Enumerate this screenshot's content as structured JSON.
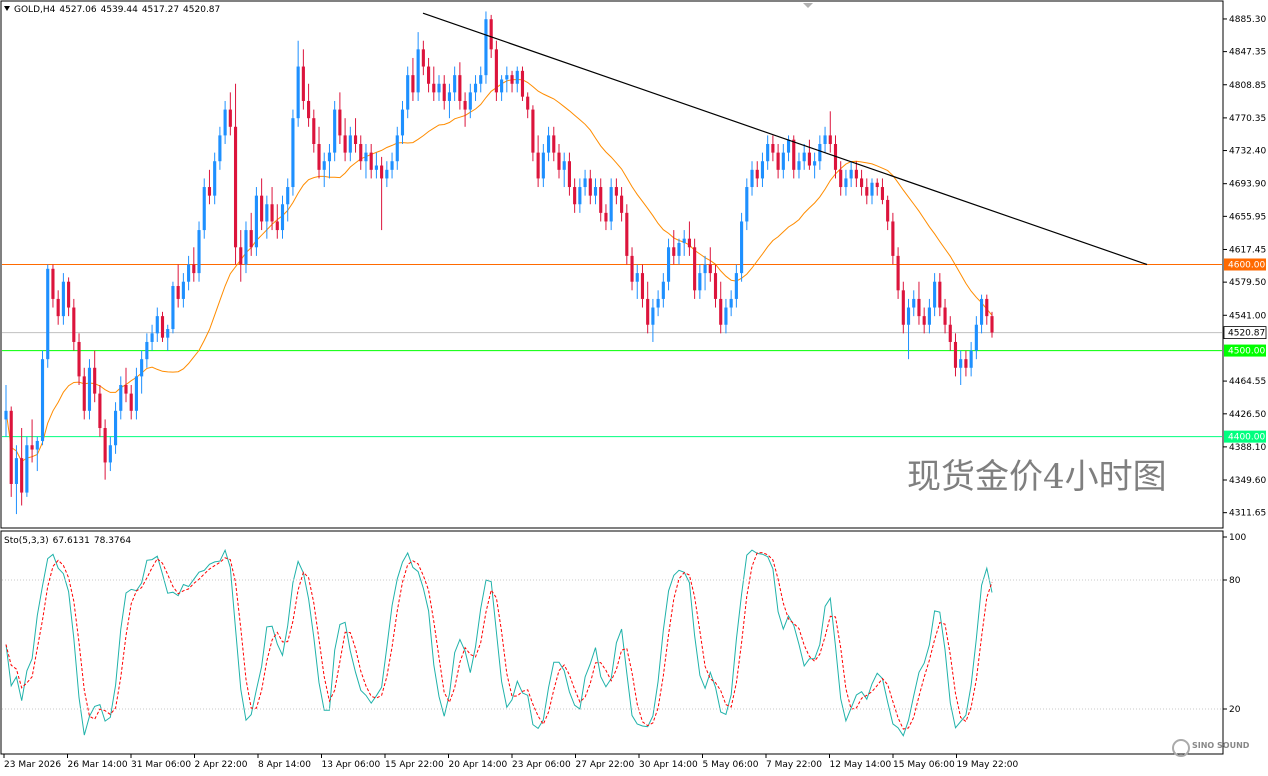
{
  "chart_data": [
    {
      "type": "candlestick",
      "symbol": "GOLD",
      "timeframe": "H4",
      "ohlc_header": {
        "open": "4527.06",
        "high": "4539.44",
        "low": "4517.27",
        "close": "4520.87"
      },
      "price_axis_ticks": [
        "4885.30",
        "4847.35",
        "4808.85",
        "4770.35",
        "4732.40",
        "4693.90",
        "4655.95",
        "4617.45",
        "4579.50",
        "4541.00",
        "4464.55",
        "4426.50",
        "4388.10",
        "4349.60",
        "4311.65"
      ],
      "ylim": [
        4295,
        4905
      ],
      "time_axis_labels": [
        "23 Mar 2026",
        "26 Mar 14:00",
        "31 Mar 06:00",
        "2 Apr 22:00",
        "8 Apr 14:00",
        "13 Apr 06:00",
        "15 Apr 22:00",
        "20 Apr 14:00",
        "23 Apr 06:00",
        "27 Apr 22:00",
        "30 Apr 14:00",
        "5 May 06:00",
        "7 May 22:00",
        "12 May 14:00",
        "15 May 06:00",
        "19 May 22:00"
      ],
      "horizontal_lines": [
        {
          "price": 4600.0,
          "label": "4600.00",
          "color": "#ff6a00"
        },
        {
          "price": 4500.0,
          "label": "4500.00",
          "color": "#00ff00"
        },
        {
          "price": 4400.0,
          "label": "4400.00",
          "color": "#00ff7f"
        }
      ],
      "current_price": {
        "price": 4520.87,
        "label": "4520.87"
      },
      "trendline": {
        "from": {
          "bar": 143,
          "price": 4892
        },
        "to": {
          "bar": 387,
          "price": 4600
        },
        "color": "#000000"
      },
      "moving_average": {
        "color": "#ff8c00"
      },
      "up_color": "#1e90ff",
      "down_color": "#dc143c",
      "candles_ohlc": [
        [
          4420,
          4460,
          4400,
          4430
        ],
        [
          4430,
          4435,
          4330,
          4345
        ],
        [
          4345,
          4390,
          4310,
          4375
        ],
        [
          4375,
          4410,
          4320,
          4335
        ],
        [
          4335,
          4400,
          4330,
          4390
        ],
        [
          4390,
          4420,
          4370,
          4385
        ],
        [
          4385,
          4400,
          4360,
          4395
        ],
        [
          4395,
          4500,
          4390,
          4490
        ],
        [
          4490,
          4600,
          4480,
          4595
        ],
        [
          4595,
          4600,
          4550,
          4560
        ],
        [
          4560,
          4570,
          4530,
          4540
        ],
        [
          4540,
          4590,
          4530,
          4580
        ],
        [
          4580,
          4585,
          4540,
          4550
        ],
        [
          4550,
          4560,
          4500,
          4510
        ],
        [
          4510,
          4520,
          4460,
          4470
        ],
        [
          4470,
          4480,
          4420,
          4430
        ],
        [
          4430,
          4490,
          4420,
          4480
        ],
        [
          4480,
          4500,
          4440,
          4450
        ],
        [
          4450,
          4460,
          4400,
          4410
        ],
        [
          4410,
          4420,
          4350,
          4370
        ],
        [
          4370,
          4400,
          4360,
          4390
        ],
        [
          4390,
          4440,
          4380,
          4430
        ],
        [
          4430,
          4470,
          4420,
          4460
        ],
        [
          4460,
          4480,
          4440,
          4450
        ],
        [
          4450,
          4460,
          4420,
          4430
        ],
        [
          4430,
          4480,
          4420,
          4470
        ],
        [
          4470,
          4500,
          4450,
          4490
        ],
        [
          4490,
          4520,
          4480,
          4510
        ],
        [
          4510,
          4530,
          4500,
          4520
        ],
        [
          4520,
          4550,
          4510,
          4540
        ],
        [
          4540,
          4545,
          4510,
          4515
        ],
        [
          4515,
          4530,
          4500,
          4525
        ],
        [
          4525,
          4580,
          4520,
          4575
        ],
        [
          4575,
          4600,
          4550,
          4560
        ],
        [
          4560,
          4590,
          4550,
          4580
        ],
        [
          4580,
          4610,
          4570,
          4600
        ],
        [
          4600,
          4620,
          4580,
          4590
        ],
        [
          4590,
          4650,
          4580,
          4640
        ],
        [
          4640,
          4700,
          4630,
          4690
        ],
        [
          4690,
          4710,
          4670,
          4680
        ],
        [
          4680,
          4730,
          4670,
          4720
        ],
        [
          4720,
          4760,
          4710,
          4750
        ],
        [
          4750,
          4790,
          4740,
          4780
        ],
        [
          4780,
          4800,
          4750,
          4760
        ],
        [
          4760,
          4810,
          4600,
          4620
        ],
        [
          4620,
          4640,
          4580,
          4600
        ],
        [
          4600,
          4650,
          4590,
          4640
        ],
        [
          4640,
          4660,
          4610,
          4620
        ],
        [
          4620,
          4690,
          4610,
          4680
        ],
        [
          4680,
          4700,
          4640,
          4650
        ],
        [
          4650,
          4680,
          4630,
          4670
        ],
        [
          4670,
          4690,
          4640,
          4650
        ],
        [
          4650,
          4670,
          4630,
          4640
        ],
        [
          4640,
          4680,
          4630,
          4670
        ],
        [
          4670,
          4700,
          4650,
          4690
        ],
        [
          4690,
          4780,
          4680,
          4770
        ],
        [
          4770,
          4860,
          4760,
          4830
        ],
        [
          4830,
          4850,
          4780,
          4790
        ],
        [
          4790,
          4810,
          4760,
          4770
        ],
        [
          4770,
          4780,
          4730,
          4740
        ],
        [
          4740,
          4760,
          4700,
          4710
        ],
        [
          4710,
          4730,
          4690,
          4720
        ],
        [
          4720,
          4740,
          4700,
          4730
        ],
        [
          4730,
          4790,
          4720,
          4780
        ],
        [
          4780,
          4800,
          4740,
          4750
        ],
        [
          4750,
          4770,
          4720,
          4730
        ],
        [
          4730,
          4760,
          4720,
          4750
        ],
        [
          4750,
          4770,
          4730,
          4740
        ],
        [
          4740,
          4750,
          4710,
          4720
        ],
        [
          4720,
          4740,
          4700,
          4730
        ],
        [
          4730,
          4740,
          4700,
          4710
        ],
        [
          4710,
          4730,
          4700,
          4715
        ],
        [
          4715,
          4725,
          4640,
          4700
        ],
        [
          4700,
          4720,
          4690,
          4710
        ],
        [
          4710,
          4730,
          4700,
          4720
        ],
        [
          4720,
          4760,
          4710,
          4750
        ],
        [
          4750,
          4790,
          4740,
          4780
        ],
        [
          4780,
          4830,
          4770,
          4820
        ],
        [
          4820,
          4840,
          4790,
          4800
        ],
        [
          4800,
          4870,
          4790,
          4850
        ],
        [
          4850,
          4860,
          4820,
          4830
        ],
        [
          4830,
          4840,
          4800,
          4810
        ],
        [
          4810,
          4830,
          4790,
          4800
        ],
        [
          4800,
          4820,
          4790,
          4810
        ],
        [
          4810,
          4820,
          4780,
          4790
        ],
        [
          4790,
          4810,
          4770,
          4800
        ],
        [
          4800,
          4830,
          4790,
          4820
        ],
        [
          4820,
          4835,
          4780,
          4790
        ],
        [
          4790,
          4800,
          4760,
          4780
        ],
        [
          4780,
          4810,
          4770,
          4800
        ],
        [
          4800,
          4820,
          4790,
          4810
        ],
        [
          4810,
          4830,
          4800,
          4820
        ],
        [
          4820,
          4894,
          4810,
          4885
        ],
        [
          4885,
          4890,
          4840,
          4850
        ],
        [
          4850,
          4860,
          4790,
          4800
        ],
        [
          4800,
          4820,
          4790,
          4815
        ],
        [
          4815,
          4830,
          4800,
          4820
        ],
        [
          4820,
          4825,
          4800,
          4810
        ],
        [
          4810,
          4830,
          4800,
          4825
        ],
        [
          4825,
          4830,
          4790,
          4795
        ],
        [
          4795,
          4800,
          4770,
          4780
        ],
        [
          4780,
          4785,
          4720,
          4730
        ],
        [
          4730,
          4750,
          4690,
          4700
        ],
        [
          4700,
          4740,
          4690,
          4730
        ],
        [
          4730,
          4760,
          4720,
          4750
        ],
        [
          4750,
          4760,
          4720,
          4730
        ],
        [
          4730,
          4740,
          4700,
          4710
        ],
        [
          4710,
          4730,
          4690,
          4720
        ],
        [
          4720,
          4730,
          4680,
          4690
        ],
        [
          4690,
          4700,
          4660,
          4670
        ],
        [
          4670,
          4700,
          4660,
          4690
        ],
        [
          4690,
          4710,
          4680,
          4700
        ],
        [
          4700,
          4710,
          4670,
          4680
        ],
        [
          4680,
          4700,
          4670,
          4690
        ],
        [
          4690,
          4700,
          4650,
          4660
        ],
        [
          4660,
          4670,
          4640,
          4650
        ],
        [
          4650,
          4700,
          4640,
          4690
        ],
        [
          4690,
          4700,
          4670,
          4680
        ],
        [
          4680,
          4690,
          4650,
          4660
        ],
        [
          4660,
          4670,
          4600,
          4610
        ],
        [
          4610,
          4620,
          4570,
          4580
        ],
        [
          4580,
          4600,
          4560,
          4590
        ],
        [
          4590,
          4600,
          4550,
          4560
        ],
        [
          4560,
          4580,
          4520,
          4530
        ],
        [
          4530,
          4560,
          4510,
          4550
        ],
        [
          4550,
          4570,
          4540,
          4560
        ],
        [
          4560,
          4590,
          4550,
          4580
        ],
        [
          4580,
          4630,
          4570,
          4620
        ],
        [
          4620,
          4640,
          4600,
          4610
        ],
        [
          4610,
          4630,
          4600,
          4625
        ],
        [
          4625,
          4640,
          4610,
          4630
        ],
        [
          4630,
          4650,
          4610,
          4620
        ],
        [
          4620,
          4630,
          4560,
          4570
        ],
        [
          4570,
          4600,
          4560,
          4590
        ],
        [
          4590,
          4610,
          4570,
          4600
        ],
        [
          4600,
          4620,
          4580,
          4590
        ],
        [
          4590,
          4600,
          4550,
          4560
        ],
        [
          4560,
          4580,
          4520,
          4530
        ],
        [
          4530,
          4560,
          4520,
          4550
        ],
        [
          4550,
          4570,
          4540,
          4560
        ],
        [
          4560,
          4600,
          4550,
          4590
        ],
        [
          4590,
          4660,
          4580,
          4650
        ],
        [
          4650,
          4700,
          4640,
          4690
        ],
        [
          4690,
          4720,
          4680,
          4710
        ],
        [
          4710,
          4720,
          4690,
          4700
        ],
        [
          4700,
          4730,
          4690,
          4720
        ],
        [
          4720,
          4750,
          4710,
          4740
        ],
        [
          4740,
          4750,
          4720,
          4730
        ],
        [
          4730,
          4740,
          4700,
          4710
        ],
        [
          4710,
          4740,
          4700,
          4730
        ],
        [
          4730,
          4750,
          4720,
          4745
        ],
        [
          4745,
          4750,
          4700,
          4710
        ],
        [
          4710,
          4730,
          4700,
          4720
        ],
        [
          4720,
          4740,
          4710,
          4730
        ],
        [
          4730,
          4745,
          4710,
          4715
        ],
        [
          4715,
          4730,
          4700,
          4720
        ],
        [
          4720,
          4750,
          4710,
          4740
        ],
        [
          4740,
          4760,
          4730,
          4750
        ],
        [
          4750,
          4778,
          4730,
          4740
        ],
        [
          4740,
          4750,
          4700,
          4710
        ],
        [
          4710,
          4720,
          4680,
          4690
        ],
        [
          4690,
          4710,
          4680,
          4700
        ],
        [
          4700,
          4720,
          4690,
          4710
        ],
        [
          4710,
          4720,
          4690,
          4700
        ],
        [
          4700,
          4710,
          4680,
          4690
        ],
        [
          4690,
          4700,
          4670,
          4680
        ],
        [
          4680,
          4700,
          4670,
          4695
        ],
        [
          4695,
          4700,
          4680,
          4690
        ],
        [
          4690,
          4700,
          4670,
          4675
        ],
        [
          4675,
          4680,
          4640,
          4650
        ],
        [
          4650,
          4660,
          4600,
          4610
        ],
        [
          4610,
          4620,
          4560,
          4570
        ],
        [
          4570,
          4580,
          4520,
          4530
        ],
        [
          4530,
          4560,
          4490,
          4550
        ],
        [
          4550,
          4570,
          4540,
          4560
        ],
        [
          4560,
          4580,
          4530,
          4540
        ],
        [
          4540,
          4550,
          4520,
          4530
        ],
        [
          4530,
          4560,
          4520,
          4550
        ],
        [
          4550,
          4590,
          4540,
          4580
        ],
        [
          4580,
          4590,
          4540,
          4550
        ],
        [
          4550,
          4560,
          4520,
          4530
        ],
        [
          4530,
          4540,
          4500,
          4510
        ],
        [
          4510,
          4520,
          4470,
          4480
        ],
        [
          4480,
          4500,
          4460,
          4490
        ],
        [
          4490,
          4500,
          4470,
          4480
        ],
        [
          4480,
          4510,
          4470,
          4500
        ],
        [
          4500,
          4540,
          4490,
          4530
        ],
        [
          4530,
          4565,
          4520,
          4560
        ],
        [
          4560,
          4565,
          4530,
          4540
        ],
        [
          4540,
          4545,
          4515,
          4521
        ]
      ]
    },
    {
      "type": "line",
      "indicator": "Sto(5,3,3)",
      "main_value": "67.6131",
      "signal_value": "78.3764",
      "ylim": [
        0,
        100
      ],
      "ticks": [
        "100",
        "80",
        "20"
      ],
      "levels": [
        20,
        80
      ],
      "main_color": "#20b2aa",
      "signal_color": "#ff0000"
    }
  ],
  "watermark": "现货金价4小时图",
  "logo": "SINO SOUND"
}
